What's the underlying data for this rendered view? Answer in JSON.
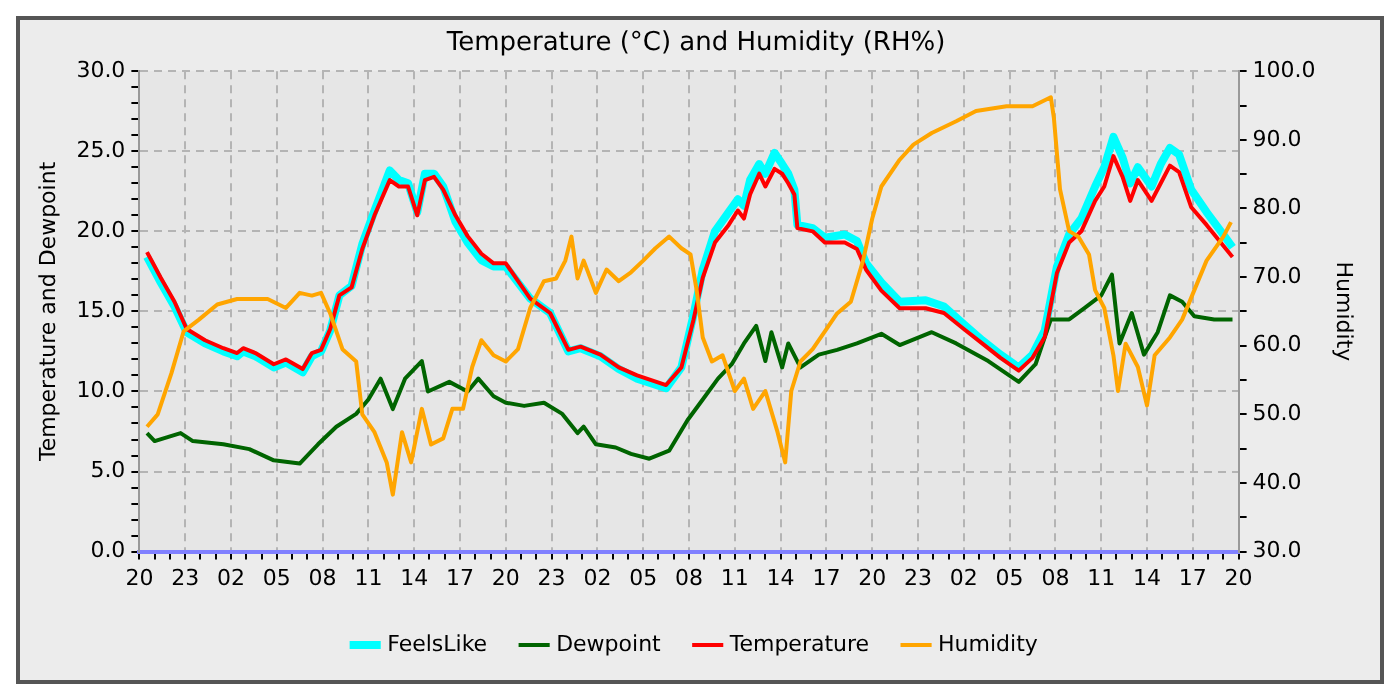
{
  "chart_data": {
    "type": "line",
    "title": "Temperature (°C) and Humidity (RH%)",
    "ylabel": "Temperature and Dewpoint",
    "y2label": "Humidity",
    "legend": "bottom",
    "grid": true,
    "xlim": [
      "--01-01T20:00",
      "--01-04T20:00"
    ],
    "ylim": [
      0,
      30
    ],
    "y2lim": [
      30,
      100
    ],
    "xticks": [
      {
        "value": "--01-01T20:00",
        "label": "20"
      },
      {
        "value": "--01-01T21:00",
        "label": null
      },
      {
        "value": "--01-01T22:00",
        "label": null
      },
      {
        "value": "--01-01T23:00",
        "label": "23"
      },
      {
        "value": "--01-02T00:00",
        "label": null
      },
      {
        "value": "--01-02T01:00",
        "label": null
      },
      {
        "value": "--01-02T02:00",
        "label": "02"
      },
      {
        "value": "--01-02T03:00",
        "label": null
      },
      {
        "value": "--01-02T04:00",
        "label": null
      },
      {
        "value": "--01-02T05:00",
        "label": "05"
      },
      {
        "value": "--01-02T06:00",
        "label": null
      },
      {
        "value": "--01-02T07:00",
        "label": null
      },
      {
        "value": "--01-02T08:00",
        "label": "08"
      },
      {
        "value": "--01-02T09:00",
        "label": null
      },
      {
        "value": "--01-02T10:00",
        "label": null
      },
      {
        "value": "--01-02T11:00",
        "label": "11"
      },
      {
        "value": "--01-02T12:00",
        "label": null
      },
      {
        "value": "--01-02T13:00",
        "label": null
      },
      {
        "value": "--01-02T14:00",
        "label": "14"
      },
      {
        "value": "--01-02T15:00",
        "label": null
      },
      {
        "value": "--01-02T16:00",
        "label": null
      },
      {
        "value": "--01-02T17:00",
        "label": "17"
      },
      {
        "value": "--01-02T18:00",
        "label": null
      },
      {
        "value": "--01-02T19:00",
        "label": null
      },
      {
        "value": "--01-02T20:00",
        "label": "20"
      },
      {
        "value": "--01-02T21:00",
        "label": null
      },
      {
        "value": "--01-02T22:00",
        "label": null
      },
      {
        "value": "--01-02T23:00",
        "label": "23"
      },
      {
        "value": "--01-03T00:00",
        "label": null
      },
      {
        "value": "--01-03T01:00",
        "label": null
      },
      {
        "value": "--01-03T02:00",
        "label": "02"
      },
      {
        "value": "--01-03T03:00",
        "label": null
      },
      {
        "value": "--01-03T04:00",
        "label": null
      },
      {
        "value": "--01-03T05:00",
        "label": "05"
      },
      {
        "value": "--01-03T06:00",
        "label": null
      },
      {
        "value": "--01-03T07:00",
        "label": null
      },
      {
        "value": "--01-03T08:00",
        "label": "08"
      },
      {
        "value": "--01-03T09:00",
        "label": null
      },
      {
        "value": "--01-03T10:00",
        "label": null
      },
      {
        "value": "--01-03T11:00",
        "label": "11"
      },
      {
        "value": "--01-03T12:00",
        "label": null
      },
      {
        "value": "--01-03T13:00",
        "label": null
      },
      {
        "value": "--01-03T14:00",
        "label": "14"
      },
      {
        "value": "--01-03T15:00",
        "label": null
      },
      {
        "value": "--01-03T16:00",
        "label": null
      },
      {
        "value": "--01-03T17:00",
        "label": "17"
      },
      {
        "value": "--01-03T18:00",
        "label": null
      },
      {
        "value": "--01-03T19:00",
        "label": null
      },
      {
        "value": "--01-03T20:00",
        "label": "20"
      },
      {
        "value": "--01-03T21:00",
        "label": null
      },
      {
        "value": "--01-03T22:00",
        "label": null
      },
      {
        "value": "--01-03T23:00",
        "label": "23"
      },
      {
        "value": "--01-04T00:00",
        "label": null
      },
      {
        "value": "--01-04T01:00",
        "label": null
      },
      {
        "value": "--01-04T02:00",
        "label": "02"
      },
      {
        "value": "--01-04T03:00",
        "label": null
      },
      {
        "value": "--01-04T04:00",
        "label": null
      },
      {
        "value": "--01-04T05:00",
        "label": "05"
      },
      {
        "value": "--01-04T06:00",
        "label": null
      },
      {
        "value": "--01-04T07:00",
        "label": null
      },
      {
        "value": "--01-04T08:00",
        "label": "08"
      },
      {
        "value": "--01-04T09:00",
        "label": null
      },
      {
        "value": "--01-04T10:00",
        "label": null
      },
      {
        "value": "--01-04T11:00",
        "label": "11"
      },
      {
        "value": "--01-04T12:00",
        "label": null
      },
      {
        "value": "--01-04T13:00",
        "label": null
      },
      {
        "value": "--01-04T14:00",
        "label": "14"
      },
      {
        "value": "--01-04T15:00",
        "label": null
      },
      {
        "value": "--01-04T16:00",
        "label": null
      },
      {
        "value": "--01-04T17:00",
        "label": "17"
      },
      {
        "value": "--01-04T18:00",
        "label": null
      },
      {
        "value": "--01-04T19:00",
        "label": null
      },
      {
        "value": "--01-04T20:00",
        "label": "20"
      }
    ],
    "yticks": [
      {
        "value": 0,
        "label": "0.0"
      },
      {
        "value": 1,
        "label": null
      },
      {
        "value": 2,
        "label": null
      },
      {
        "value": 3,
        "label": null
      },
      {
        "value": 4,
        "label": null
      },
      {
        "value": 5,
        "label": "5.0"
      },
      {
        "value": 6,
        "label": null
      },
      {
        "value": 7,
        "label": null
      },
      {
        "value": 8,
        "label": null
      },
      {
        "value": 9,
        "label": null
      },
      {
        "value": 10,
        "label": "10.0"
      },
      {
        "value": 11,
        "label": null
      },
      {
        "value": 12,
        "label": null
      },
      {
        "value": 13,
        "label": null
      },
      {
        "value": 14,
        "label": null
      },
      {
        "value": 15,
        "label": "15.0"
      },
      {
        "value": 16,
        "label": null
      },
      {
        "value": 17,
        "label": null
      },
      {
        "value": 18,
        "label": null
      },
      {
        "value": 19,
        "label": null
      },
      {
        "value": 20,
        "label": "20.0"
      },
      {
        "value": 21,
        "label": null
      },
      {
        "value": 22,
        "label": null
      },
      {
        "value": 23,
        "label": null
      },
      {
        "value": 24,
        "label": null
      },
      {
        "value": 25,
        "label": "25.0"
      },
      {
        "value": 26,
        "label": null
      },
      {
        "value": 27,
        "label": null
      },
      {
        "value": 28,
        "label": null
      },
      {
        "value": 29,
        "label": null
      },
      {
        "value": 30,
        "label": "30.0"
      }
    ],
    "y2ticks": [
      {
        "value": 30,
        "label": "30.0"
      },
      {
        "value": 35,
        "label": null
      },
      {
        "value": 40,
        "label": "40.0"
      },
      {
        "value": 45,
        "label": null
      },
      {
        "value": 50,
        "label": "50.0"
      },
      {
        "value": 55,
        "label": null
      },
      {
        "value": 60,
        "label": "60.0"
      },
      {
        "value": 65,
        "label": null
      },
      {
        "value": 70,
        "label": "70.0"
      },
      {
        "value": 75,
        "label": null
      },
      {
        "value": 80,
        "label": "80.0"
      },
      {
        "value": 85,
        "label": null
      },
      {
        "value": 90,
        "label": "90.0"
      },
      {
        "value": 95,
        "label": null
      },
      {
        "value": 100,
        "label": "100.0"
      }
    ],
    "series": [
      {
        "name": "FeelsLike",
        "color": "#00ffff",
        "x": [
          "--01-01T20:30",
          "--01-01T21:24",
          "--01-01T22:18",
          "--01-01T23:06",
          "--01-02T00:18",
          "--01-02T01:30",
          "--01-02T02:24",
          "--01-02T02:48",
          "--01-02T03:36",
          "--01-02T04:48",
          "--01-02T05:36",
          "--01-02T06:42",
          "--01-02T07:18",
          "--01-02T07:54",
          "--01-02T08:30",
          "--01-02T09:06",
          "--01-02T09:54",
          "--01-02T10:36",
          "--01-02T11:24",
          "--01-02T12:24",
          "--01-02T13:00",
          "--01-02T13:36",
          "--01-02T14:12",
          "--01-02T14:42",
          "--01-02T15:18",
          "--01-02T15:54",
          "--01-02T16:42",
          "--01-02T17:30",
          "--01-02T18:24",
          "--01-02T19:12",
          "--01-02T20:00",
          "--01-02T21:36",
          "--01-02T22:54",
          "--01-03T00:06",
          "--01-03T00:54",
          "--01-03T02:12",
          "--01-03T03:24",
          "--01-03T04:36",
          "--01-03T06:30",
          "--01-03T07:30",
          "--01-03T08:18",
          "--01-03T08:54",
          "--01-03T09:42",
          "--01-03T10:36",
          "--01-03T11:12",
          "--01-03T11:36",
          "--01-03T12:00",
          "--01-03T12:36",
          "--01-03T13:00",
          "--01-03T13:36",
          "--01-03T14:06",
          "--01-03T14:30",
          "--01-03T14:54",
          "--01-03T15:06",
          "--01-03T16:06",
          "--01-03T16:54",
          "--01-03T18:12",
          "--01-03T19:00",
          "--01-03T19:36",
          "--01-03T20:36",
          "--01-03T21:48",
          "--01-03T23:30",
          "--01-04T00:42",
          "--01-04T02:00",
          "--01-04T03:12",
          "--01-04T04:24",
          "--01-04T05:36",
          "--01-04T06:30",
          "--01-04T07:18",
          "--01-04T08:06",
          "--01-04T08:54",
          "--01-04T09:42",
          "--01-04T10:36",
          "--01-04T11:12",
          "--01-04T11:48",
          "--01-04T12:24",
          "--01-04T12:54",
          "--01-04T13:24",
          "--01-04T14:18",
          "--01-04T14:54",
          "--01-04T15:30",
          "--01-04T16:06",
          "--01-04T16:54",
          "--01-04T17:54",
          "--01-04T19:00",
          "--01-04T19:36"
        ],
        "values": [
          18.4,
          16.8,
          15.3,
          13.7,
          13.0,
          12.5,
          12.2,
          12.5,
          12.2,
          11.5,
          11.8,
          11.2,
          12.2,
          12.5,
          13.8,
          16.0,
          16.6,
          19.2,
          21.3,
          23.8,
          23.2,
          23.0,
          21.2,
          23.6,
          23.6,
          22.8,
          20.6,
          19.3,
          18.2,
          17.8,
          17.8,
          15.8,
          14.9,
          12.5,
          12.7,
          12.2,
          11.4,
          10.8,
          10.2,
          11.5,
          14.8,
          17.6,
          20.0,
          21.2,
          22.0,
          21.6,
          23.2,
          24.2,
          23.6,
          24.9,
          24.2,
          23.6,
          22.6,
          20.4,
          20.2,
          19.6,
          19.8,
          19.4,
          18.0,
          16.8,
          15.6,
          15.7,
          15.3,
          14.2,
          13.2,
          12.3,
          11.5,
          12.3,
          13.8,
          17.8,
          19.8,
          20.8,
          22.8,
          24.0,
          25.9,
          24.6,
          23.0,
          24.0,
          22.8,
          24.2,
          25.2,
          24.8,
          22.6,
          21.2,
          19.8,
          19.0
        ]
      },
      {
        "name": "Dewpoint",
        "color": "#006400",
        "x": [
          "--01-01T20:30",
          "--01-01T21:00",
          "--01-01T22:42",
          "--01-01T23:30",
          "--01-02T01:30",
          "--01-02T03:12",
          "--01-02T04:48",
          "--01-02T06:30",
          "--01-02T07:42",
          "--01-02T08:54",
          "--01-02T10:12",
          "--01-02T11:00",
          "--01-02T11:48",
          "--01-02T12:36",
          "--01-02T13:24",
          "--01-02T14:30",
          "--01-02T14:54",
          "--01-02T16:18",
          "--01-02T17:30",
          "--01-02T18:12",
          "--01-02T19:12",
          "--01-02T20:00",
          "--01-02T21:12",
          "--01-02T22:30",
          "--01-02T23:42",
          "--01-03T00:42",
          "--01-03T01:06",
          "--01-03T01:54",
          "--01-03T03:12",
          "--01-03T04:12",
          "--01-03T05:24",
          "--01-03T06:42",
          "--01-03T07:54",
          "--01-03T08:54",
          "--01-03T09:54",
          "--01-03T10:48",
          "--01-03T11:36",
          "--01-03T12:24",
          "--01-03T13:00",
          "--01-03T13:24",
          "--01-03T14:06",
          "--01-03T14:30",
          "--01-03T15:18",
          "--01-03T16:30",
          "--01-03T17:42",
          "--01-03T19:00",
          "--01-03T20:36",
          "--01-03T21:48",
          "--01-03T23:54",
          "--01-04T01:30",
          "--01-04T03:36",
          "--01-04T05:36",
          "--01-04T06:42",
          "--01-04T07:42",
          "--01-04T08:54",
          "--01-04T09:54",
          "--01-04T11:00",
          "--01-04T11:42",
          "--01-04T12:12",
          "--01-04T13:00",
          "--01-04T13:48",
          "--01-04T14:42",
          "--01-04T15:30",
          "--01-04T16:18",
          "--01-04T17:06",
          "--01-04T18:24",
          "--01-04T19:36"
        ],
        "values": [
          7.4,
          6.9,
          7.4,
          6.9,
          6.7,
          6.4,
          5.7,
          5.5,
          6.7,
          7.8,
          8.6,
          9.5,
          10.8,
          8.9,
          10.8,
          11.9,
          10.0,
          10.6,
          10.0,
          10.8,
          9.7,
          9.3,
          9.1,
          9.3,
          8.6,
          7.4,
          7.8,
          6.7,
          6.5,
          6.1,
          5.8,
          6.3,
          8.2,
          9.5,
          10.8,
          11.7,
          13.0,
          14.1,
          11.9,
          13.7,
          11.5,
          13.0,
          11.5,
          12.3,
          12.6,
          13.0,
          13.6,
          12.9,
          13.7,
          13.0,
          11.9,
          10.6,
          11.7,
          14.5,
          14.5,
          15.2,
          16.0,
          17.3,
          13.0,
          14.9,
          12.3,
          13.7,
          16.0,
          15.6,
          14.7,
          14.5,
          14.5
        ]
      },
      {
        "name": "Temperature",
        "color": "#ff0000",
        "x": [
          "--01-01T20:30",
          "--01-01T21:24",
          "--01-01T22:18",
          "--01-01T23:06",
          "--01-02T00:18",
          "--01-02T01:30",
          "--01-02T02:24",
          "--01-02T02:48",
          "--01-02T03:36",
          "--01-02T04:48",
          "--01-02T05:36",
          "--01-02T06:42",
          "--01-02T07:18",
          "--01-02T07:54",
          "--01-02T08:30",
          "--01-02T09:06",
          "--01-02T09:54",
          "--01-02T10:36",
          "--01-02T11:24",
          "--01-02T12:24",
          "--01-02T13:00",
          "--01-02T13:36",
          "--01-02T14:12",
          "--01-02T14:42",
          "--01-02T15:18",
          "--01-02T15:54",
          "--01-02T16:42",
          "--01-02T17:30",
          "--01-02T18:24",
          "--01-02T19:12",
          "--01-02T20:00",
          "--01-02T21:36",
          "--01-02T22:54",
          "--01-03T00:06",
          "--01-03T00:54",
          "--01-03T02:12",
          "--01-03T03:24",
          "--01-03T04:36",
          "--01-03T06:30",
          "--01-03T07:30",
          "--01-03T08:18",
          "--01-03T08:54",
          "--01-03T09:42",
          "--01-03T10:36",
          "--01-03T11:12",
          "--01-03T11:36",
          "--01-03T12:00",
          "--01-03T12:36",
          "--01-03T13:00",
          "--01-03T13:36",
          "--01-03T14:06",
          "--01-03T14:30",
          "--01-03T14:54",
          "--01-03T15:06",
          "--01-03T16:06",
          "--01-03T16:54",
          "--01-03T18:12",
          "--01-03T19:00",
          "--01-03T19:36",
          "--01-03T20:36",
          "--01-03T21:48",
          "--01-03T23:30",
          "--01-04T00:42",
          "--01-04T02:00",
          "--01-04T03:12",
          "--01-04T04:24",
          "--01-04T05:36",
          "--01-04T06:30",
          "--01-04T07:18",
          "--01-04T08:06",
          "--01-04T08:54",
          "--01-04T09:42",
          "--01-04T10:36",
          "--01-04T11:12",
          "--01-04T11:48",
          "--01-04T12:24",
          "--01-04T12:54",
          "--01-04T13:24",
          "--01-04T14:18",
          "--01-04T14:54",
          "--01-04T15:30",
          "--01-04T16:06",
          "--01-04T16:54",
          "--01-04T17:54",
          "--01-04T19:00",
          "--01-04T19:36"
        ],
        "values": [
          18.7,
          17.1,
          15.6,
          13.9,
          13.2,
          12.7,
          12.4,
          12.7,
          12.4,
          11.7,
          12.0,
          11.4,
          12.4,
          12.6,
          13.9,
          16.0,
          16.5,
          18.9,
          21.0,
          23.2,
          22.8,
          22.8,
          21.0,
          23.2,
          23.4,
          22.6,
          21.0,
          19.7,
          18.6,
          18.0,
          18.0,
          15.8,
          14.9,
          12.6,
          12.8,
          12.3,
          11.5,
          11.0,
          10.4,
          11.5,
          14.5,
          17.1,
          19.3,
          20.4,
          21.3,
          20.8,
          22.3,
          23.6,
          22.8,
          23.9,
          23.6,
          23.0,
          22.3,
          20.2,
          20.0,
          19.3,
          19.3,
          18.9,
          17.6,
          16.3,
          15.2,
          15.2,
          14.9,
          13.9,
          13.0,
          12.1,
          11.3,
          12.1,
          13.4,
          17.4,
          19.3,
          20.0,
          21.9,
          22.8,
          24.7,
          23.4,
          21.9,
          23.2,
          21.9,
          23.0,
          24.1,
          23.7,
          21.5,
          20.4,
          19.1,
          18.4
        ]
      },
      {
        "name": "Humidity",
        "color": "#ffa500",
        "axis": "y2",
        "x": [
          "--01-01T20:30",
          "--01-01T21:12",
          "--01-01T22:06",
          "--01-01T22:54",
          "--01-01T23:54",
          "--01-02T01:06",
          "--01-02T02:24",
          "--01-02T04:24",
          "--01-02T05:36",
          "--01-02T06:30",
          "--01-02T07:18",
          "--01-02T07:54",
          "--01-02T08:30",
          "--01-02T09:18",
          "--01-02T10:12",
          "--01-02T10:36",
          "--01-02T11:24",
          "--01-02T12:12",
          "--01-02T12:36",
          "--01-02T13:12",
          "--01-02T13:48",
          "--01-02T14:30",
          "--01-02T15:06",
          "--01-02T15:54",
          "--01-02T16:30",
          "--01-02T17:12",
          "--01-02T17:48",
          "--01-02T18:24",
          "--01-02T19:12",
          "--01-02T20:00",
          "--01-02T20:48",
          "--01-02T21:36",
          "--01-02T22:30",
          "--01-02T23:18",
          "--01-02T23:54",
          "--01-03T00:18",
          "--01-03T00:42",
          "--01-03T01:06",
          "--01-03T01:54",
          "--01-03T02:36",
          "--01-03T03:24",
          "--01-03T04:12",
          "--01-03T05:00",
          "--01-03T05:48",
          "--01-03T06:42",
          "--01-03T07:30",
          "--01-03T08:06",
          "--01-03T08:30",
          "--01-03T08:54",
          "--01-03T09:30",
          "--01-03T10:12",
          "--01-03T11:00",
          "--01-03T11:36",
          "--01-03T12:12",
          "--01-03T13:00",
          "--01-03T13:48",
          "--01-03T14:18",
          "--01-03T14:42",
          "--01-03T15:18",
          "--01-03T16:06",
          "--01-03T16:54",
          "--01-03T17:42",
          "--01-03T18:36",
          "--01-03T19:24",
          "--01-03T20:00",
          "--01-03T20:36",
          "--01-03T21:48",
          "--01-03T22:42",
          "--01-03T23:54",
          "--01-04T01:30",
          "--01-04T02:48",
          "--01-04T04:48",
          "--01-04T06:30",
          "--01-04T07:42",
          "--01-04T07:54",
          "--01-04T08:18",
          "--01-04T08:54",
          "--01-04T09:30",
          "--01-04T10:12",
          "--01-04T10:36",
          "--01-04T11:12",
          "--01-04T11:48",
          "--01-04T12:06",
          "--01-04T12:36",
          "--01-04T13:24",
          "--01-04T14:00",
          "--01-04T14:30",
          "--01-04T15:30",
          "--01-04T16:18",
          "--01-04T17:06",
          "--01-04T17:54",
          "--01-04T19:00",
          "--01-04T19:30"
        ],
        "values": [
          48.2,
          50.0,
          56.0,
          62.1,
          63.8,
          66.0,
          66.8,
          66.8,
          65.5,
          67.7,
          67.3,
          67.7,
          64.7,
          59.5,
          57.7,
          50.0,
          47.4,
          43.0,
          38.3,
          47.4,
          43.0,
          50.8,
          45.6,
          46.5,
          50.8,
          50.8,
          56.9,
          60.8,
          58.6,
          57.7,
          59.5,
          65.5,
          69.4,
          69.8,
          72.4,
          75.9,
          69.8,
          72.4,
          67.7,
          71.1,
          69.4,
          70.7,
          72.4,
          74.2,
          75.9,
          74.2,
          73.3,
          68.1,
          61.2,
          57.7,
          58.6,
          53.4,
          55.2,
          50.8,
          53.4,
          47.4,
          43.0,
          53.4,
          57.7,
          59.5,
          62.1,
          64.7,
          66.4,
          72.4,
          78.5,
          83.2,
          87.1,
          89.3,
          91.0,
          92.7,
          94.2,
          94.9,
          94.9,
          96.2,
          93.2,
          82.8,
          76.7,
          75.9,
          73.3,
          68.1,
          65.5,
          58.6,
          53.4,
          60.3,
          56.9,
          51.3,
          58.6,
          61.2,
          63.8,
          68.1,
          72.4,
          75.9,
          78.0
        ]
      }
    ]
  }
}
